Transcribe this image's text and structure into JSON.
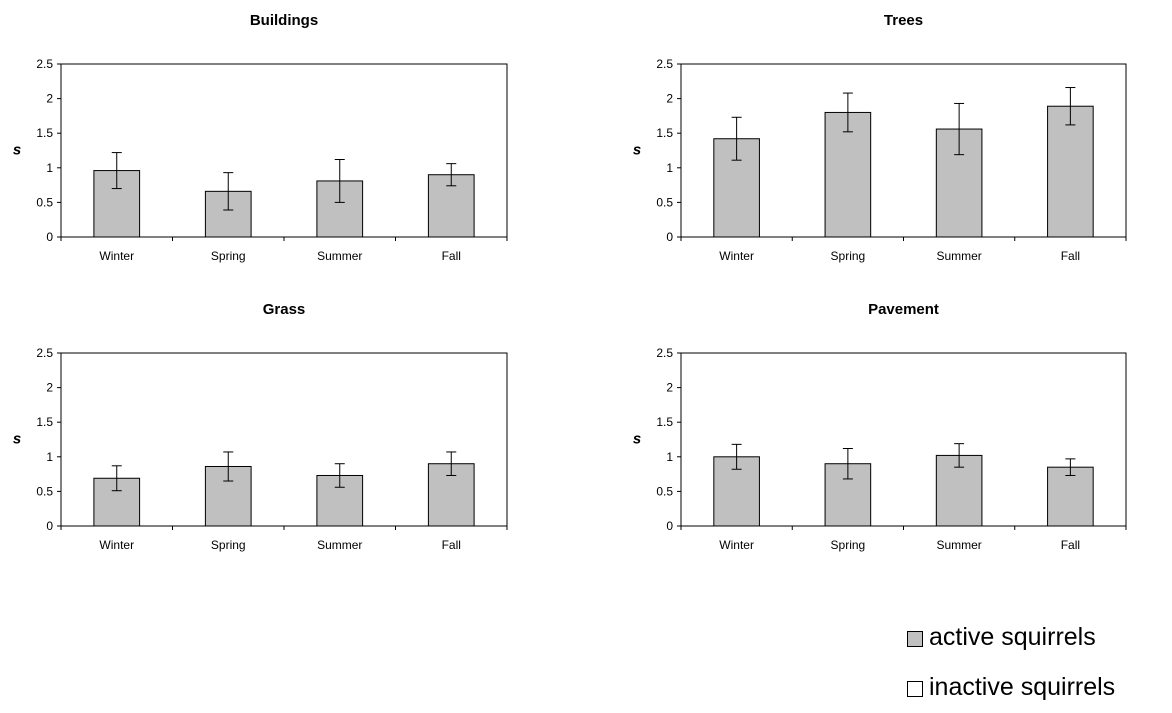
{
  "chart_data": [
    {
      "type": "bar",
      "title": "Buildings",
      "ylabel": "s",
      "categories": [
        "Winter",
        "Spring",
        "Summer",
        "Fall"
      ],
      "ylim": [
        0,
        2.5
      ],
      "yticks": [
        "0",
        "0.5",
        "1",
        "1.5",
        "2",
        "2.5"
      ],
      "series": [
        {
          "name": "active squirrels",
          "values": [
            0.96,
            0.66,
            0.81,
            0.9
          ],
          "error": [
            0.26,
            0.27,
            0.31,
            0.16
          ]
        }
      ]
    },
    {
      "type": "bar",
      "title": "Trees",
      "ylabel": "s",
      "categories": [
        "Winter",
        "Spring",
        "Summer",
        "Fall"
      ],
      "ylim": [
        0,
        2.5
      ],
      "yticks": [
        "0",
        "0.5",
        "1",
        "1.5",
        "2",
        "2.5"
      ],
      "series": [
        {
          "name": "active squirrels",
          "values": [
            1.42,
            1.8,
            1.56,
            1.89
          ],
          "error": [
            0.31,
            0.28,
            0.37,
            0.27
          ]
        }
      ]
    },
    {
      "type": "bar",
      "title": "Grass",
      "ylabel": "s",
      "categories": [
        "Winter",
        "Spring",
        "Summer",
        "Fall"
      ],
      "ylim": [
        0,
        2.5
      ],
      "yticks": [
        "0",
        "0.5",
        "1",
        "1.5",
        "2",
        "2.5"
      ],
      "series": [
        {
          "name": "active squirrels",
          "values": [
            0.69,
            0.86,
            0.73,
            0.9
          ],
          "error": [
            0.18,
            0.21,
            0.17,
            0.17
          ]
        }
      ]
    },
    {
      "type": "bar",
      "title": "Pavement",
      "ylabel": "s",
      "categories": [
        "Winter",
        "Spring",
        "Summer",
        "Fall"
      ],
      "ylim": [
        0,
        2.5
      ],
      "yticks": [
        "0",
        "0.5",
        "1",
        "1.5",
        "2",
        "2.5"
      ],
      "series": [
        {
          "name": "active squirrels",
          "values": [
            1.0,
            0.9,
            1.02,
            0.85
          ],
          "error": [
            0.18,
            0.22,
            0.17,
            0.12
          ]
        }
      ]
    }
  ],
  "legend": {
    "items": [
      {
        "label": "active squirrels",
        "color": "#c0c0c0"
      },
      {
        "label": "inactive squirrels",
        "color": "#ffffff"
      }
    ]
  },
  "colors": {
    "bar_fill": "#c0c0c0",
    "bar_stroke": "#000000"
  }
}
